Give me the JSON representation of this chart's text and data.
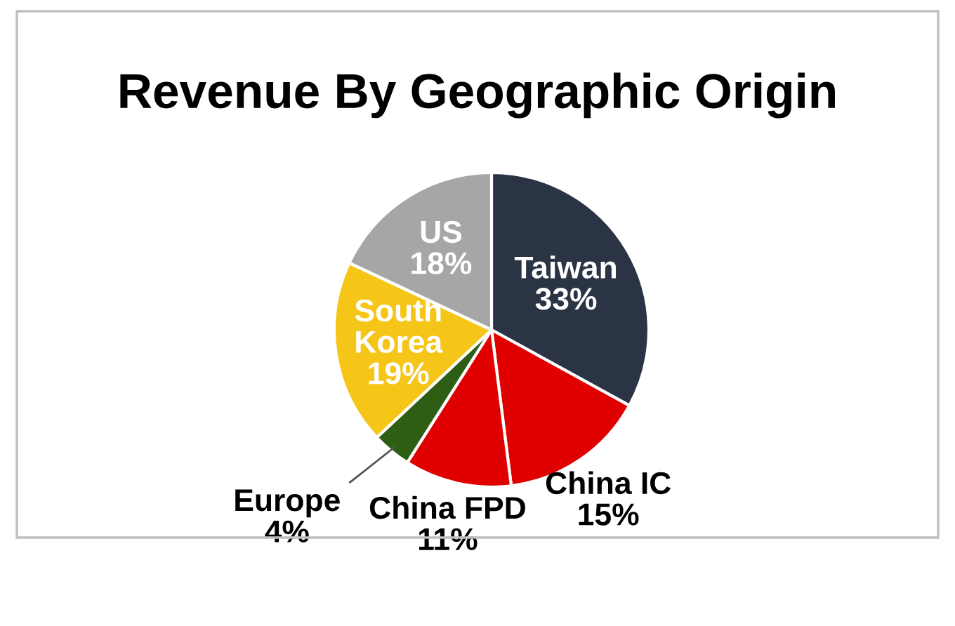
{
  "chart_data": {
    "type": "pie",
    "title": "Revenue By Geographic Origin",
    "categories": [
      "Taiwan",
      "China IC",
      "China FPD",
      "Europe",
      "South Korea",
      "US"
    ],
    "values": [
      33,
      15,
      11,
      4,
      19,
      18
    ],
    "value_labels": [
      "33%",
      "15%",
      "11%",
      "4%",
      "19%",
      "18%"
    ],
    "colors": [
      "#2b3444",
      "#e00000",
      "#e00000",
      "#2e5e14",
      "#f5c518",
      "#a6a6a6"
    ]
  }
}
